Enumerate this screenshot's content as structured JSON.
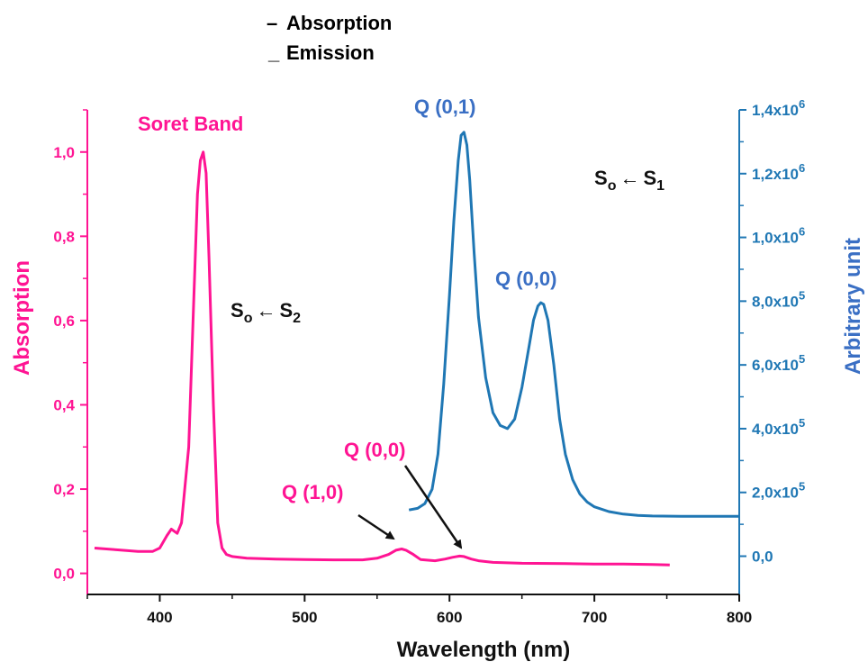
{
  "chart_data": {
    "type": "line",
    "x_axis": {
      "label": "Wavelength (nm)",
      "range": [
        350,
        800
      ],
      "ticks": [
        400,
        500,
        600,
        700,
        800
      ],
      "tick_labels": [
        "400",
        "500",
        "600",
        "700",
        "800"
      ]
    },
    "y_axis_left": {
      "label": "Absorption",
      "range": [
        -0.05,
        1.1
      ],
      "ticks": [
        0,
        0.2,
        0.4,
        0.6,
        0.8,
        1.0
      ],
      "tick_labels": [
        "0,0",
        "0,2",
        "0,4",
        "0,6",
        "0,8",
        "1,0"
      ],
      "color": "#ff1493"
    },
    "y_axis_right": {
      "label": "Arbitrary unit",
      "range": [
        -120000,
        1400000
      ],
      "ticks": [
        0,
        200000,
        400000,
        600000,
        800000,
        1000000,
        1200000,
        1400000
      ],
      "tick_labels": [
        {
          "mant": "0,0",
          "exp": ""
        },
        {
          "mant": "2,0x10",
          "exp": "5"
        },
        {
          "mant": "4,0x10",
          "exp": "5"
        },
        {
          "mant": "6,0x10",
          "exp": "5"
        },
        {
          "mant": "8,0x10",
          "exp": "5"
        },
        {
          "mant": "1,0x10",
          "exp": "6"
        },
        {
          "mant": "1,2x10",
          "exp": "6"
        },
        {
          "mant": "1,4x10",
          "exp": "6"
        }
      ],
      "color": "#1f77b4"
    },
    "legend": {
      "placement": "top-center",
      "items": [
        {
          "marker": "–",
          "label": "Absorption",
          "color": "#ff1493"
        },
        {
          "marker": "_",
          "label": "Emission",
          "color": "#3a6fc4"
        }
      ]
    },
    "series": [
      {
        "name": "Absorption",
        "axis": "left",
        "color": "#ff1493",
        "x": [
          355,
          370,
          385,
          395,
          400,
          405,
          408,
          412,
          415,
          420,
          423,
          426,
          428,
          430,
          432,
          434,
          437,
          440,
          443,
          446,
          450,
          460,
          480,
          500,
          520,
          540,
          550,
          558,
          563,
          567,
          570,
          575,
          580,
          590,
          597,
          602,
          607,
          610,
          615,
          620,
          630,
          650,
          680,
          700,
          720,
          740,
          752
        ],
        "y": [
          0.06,
          0.056,
          0.052,
          0.052,
          0.06,
          0.09,
          0.105,
          0.095,
          0.12,
          0.3,
          0.6,
          0.9,
          0.98,
          1.0,
          0.95,
          0.75,
          0.4,
          0.12,
          0.06,
          0.045,
          0.04,
          0.036,
          0.034,
          0.033,
          0.032,
          0.032,
          0.036,
          0.045,
          0.055,
          0.058,
          0.055,
          0.045,
          0.033,
          0.03,
          0.034,
          0.038,
          0.041,
          0.04,
          0.034,
          0.03,
          0.026,
          0.024,
          0.023,
          0.022,
          0.022,
          0.021,
          0.02
        ]
      },
      {
        "name": "Emission",
        "axis": "right",
        "color": "#1f77b4",
        "x": [
          572,
          578,
          583,
          588,
          592,
          596,
          600,
          603,
          606,
          608,
          610,
          612,
          614,
          617,
          620,
          625,
          630,
          635,
          640,
          645,
          650,
          655,
          658,
          661,
          663,
          665,
          668,
          672,
          676,
          680,
          685,
          690,
          695,
          700,
          710,
          720,
          730,
          740,
          760,
          780,
          800
        ],
        "y": [
          145000,
          150000,
          165000,
          210000,
          320000,
          540000,
          820000,
          1050000,
          1240000,
          1320000,
          1330000,
          1290000,
          1180000,
          950000,
          750000,
          560000,
          450000,
          410000,
          400000,
          430000,
          530000,
          660000,
          740000,
          785000,
          795000,
          790000,
          740000,
          600000,
          430000,
          320000,
          240000,
          195000,
          170000,
          155000,
          140000,
          132000,
          128000,
          126000,
          125000,
          125000,
          125000
        ]
      }
    ],
    "annotations": [
      {
        "text": "Soret Band",
        "color": "#ff1493"
      },
      {
        "text": "Q (1,0)",
        "color": "#ff1493"
      },
      {
        "text": "Q (0,0)",
        "color": "#ff1493"
      },
      {
        "text": "Q (0,1)",
        "color": "#3a6fc4"
      },
      {
        "text": "Q (0,0)",
        "color": "#3a6fc4"
      }
    ],
    "state_labels": [
      {
        "S": "S",
        "sub1": "o",
        "arrow": "←",
        "S2": "S",
        "sub2": "2"
      },
      {
        "S": "S",
        "sub1": "o",
        "arrow": "←",
        "S2": "S",
        "sub2": "1"
      }
    ]
  }
}
